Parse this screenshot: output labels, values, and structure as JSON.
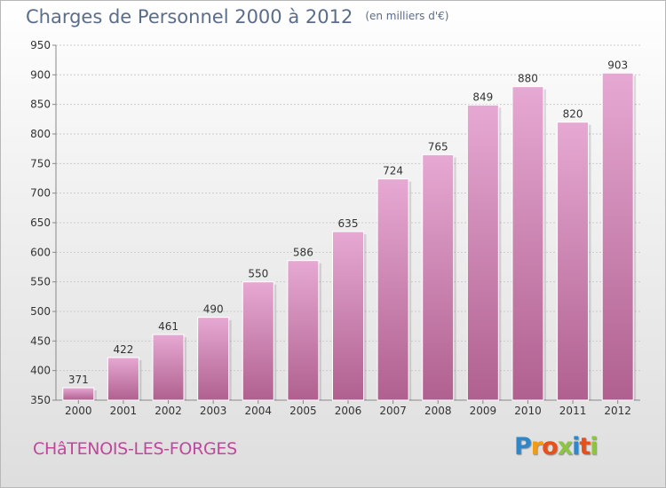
{
  "title": "Charges de Personnel 2000 à 2012",
  "subtitle": "(en milliers d'€)",
  "commune": "CHâTENOIS-LES-FORGES",
  "logo": {
    "letters": [
      "P",
      "r",
      "o",
      "x",
      "i",
      "t",
      "i"
    ],
    "colors": [
      "#2f86c8",
      "#f39c12",
      "#e8501a",
      "#8cc63f",
      "#2f86c8",
      "#e8501a",
      "#8cc63f"
    ]
  },
  "colors": {
    "bar_top": "#e6a9d3",
    "bar_bottom": "#b0608f",
    "title": "#5a6d8a",
    "commune": "#c0479b"
  },
  "chart_data": {
    "type": "bar",
    "title": "Charges de Personnel 2000 à 2012",
    "subtitle": "(en milliers d'€)",
    "categories": [
      "2000",
      "2001",
      "2002",
      "2003",
      "2004",
      "2005",
      "2006",
      "2007",
      "2008",
      "2009",
      "2010",
      "2011",
      "2012"
    ],
    "values": [
      371,
      422,
      461,
      490,
      550,
      586,
      635,
      724,
      765,
      849,
      880,
      820,
      903
    ],
    "yticks": [
      350,
      400,
      450,
      500,
      550,
      600,
      650,
      700,
      750,
      800,
      850,
      900,
      950
    ],
    "ylim": [
      350,
      950
    ],
    "grid": true
  }
}
